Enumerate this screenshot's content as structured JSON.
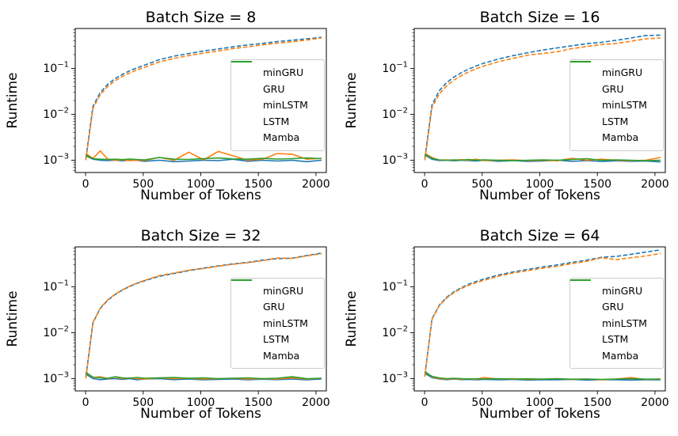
{
  "figure": {
    "background": "#ffffff"
  },
  "chart_data": [
    {
      "type": "line",
      "title": "Batch Size = 8",
      "xlabel": "Number of Tokens",
      "ylabel": "Runtime",
      "x_ticks": [
        0,
        500,
        1000,
        1500,
        2000
      ],
      "y_tick_exponents": [
        -3,
        -2,
        -1
      ],
      "xlim": [
        -90,
        2090
      ],
      "ylim": [
        0.00054,
        0.74
      ],
      "yscale": "log",
      "grid": false,
      "legend_position": "center right",
      "x": [
        2,
        64,
        128,
        192,
        256,
        320,
        384,
        448,
        512,
        640,
        768,
        896,
        1024,
        1152,
        1280,
        1408,
        1536,
        1664,
        1792,
        1920,
        2048
      ],
      "series": [
        {
          "name": "minGRU",
          "color": "#1f77b4",
          "dash": "solid",
          "values": [
            0.00125,
            0.00105,
            0.001,
            0.00098,
            0.001,
            0.00097,
            0.001,
            0.00099,
            0.00095,
            0.001,
            0.00093,
            0.00096,
            0.001,
            0.00098,
            0.00105,
            0.00095,
            0.001,
            0.00096,
            0.001,
            0.00093,
            0.001
          ]
        },
        {
          "name": "GRU",
          "color": "#1f77b4",
          "dash": "dashed",
          "values": [
            0.0011,
            0.015,
            0.03,
            0.045,
            0.06,
            0.074,
            0.089,
            0.103,
            0.118,
            0.155,
            0.185,
            0.21,
            0.24,
            0.265,
            0.295,
            0.325,
            0.35,
            0.385,
            0.41,
            0.44,
            0.475
          ]
        },
        {
          "name": "minLSTM",
          "color": "#ff7f0e",
          "dash": "solid",
          "values": [
            0.0014,
            0.0011,
            0.0016,
            0.00105,
            0.001,
            0.00102,
            0.00098,
            0.001,
            0.00099,
            0.00115,
            0.001,
            0.0015,
            0.00102,
            0.00155,
            0.00125,
            0.001,
            0.00105,
            0.0014,
            0.00135,
            0.00105,
            0.0011
          ]
        },
        {
          "name": "LSTM",
          "color": "#ff7f0e",
          "dash": "dashed",
          "values": [
            0.001,
            0.0135,
            0.027,
            0.0405,
            0.054,
            0.067,
            0.08,
            0.093,
            0.106,
            0.138,
            0.165,
            0.19,
            0.215,
            0.24,
            0.27,
            0.295,
            0.325,
            0.355,
            0.38,
            0.415,
            0.46
          ]
        },
        {
          "name": "Mamba",
          "color": "#2ca02c",
          "dash": "solid",
          "values": [
            0.0013,
            0.00108,
            0.00105,
            0.00104,
            0.00105,
            0.00103,
            0.00106,
            0.00104,
            0.00102,
            0.00115,
            0.00105,
            0.00104,
            0.00108,
            0.00112,
            0.00107,
            0.00105,
            0.0011,
            0.00106,
            0.00108,
            0.00112,
            0.00108
          ]
        }
      ]
    },
    {
      "type": "line",
      "title": "Batch Size = 16",
      "xlabel": "Number of Tokens",
      "ylabel": "Runtime",
      "x_ticks": [
        0,
        500,
        1000,
        1500,
        2000
      ],
      "y_tick_exponents": [
        -3,
        -2,
        -1
      ],
      "xlim": [
        -90,
        2090
      ],
      "ylim": [
        0.00054,
        0.74
      ],
      "yscale": "log",
      "grid": false,
      "legend_position": "center right",
      "x": [
        2,
        64,
        128,
        192,
        256,
        320,
        384,
        448,
        512,
        640,
        768,
        896,
        1024,
        1152,
        1280,
        1408,
        1536,
        1664,
        1792,
        1920,
        2048
      ],
      "series": [
        {
          "name": "minGRU",
          "color": "#1f77b4",
          "dash": "solid",
          "values": [
            0.0013,
            0.00105,
            0.00098,
            0.001,
            0.00097,
            0.001,
            0.00098,
            0.00096,
            0.001,
            0.00095,
            0.00098,
            0.00094,
            0.00096,
            0.001,
            0.00095,
            0.00098,
            0.00094,
            0.00097,
            0.00095,
            0.00096,
            0.00092
          ]
        },
        {
          "name": "GRU",
          "color": "#1f77b4",
          "dash": "dashed",
          "values": [
            0.0011,
            0.016,
            0.033,
            0.049,
            0.065,
            0.081,
            0.097,
            0.113,
            0.129,
            0.16,
            0.19,
            0.22,
            0.25,
            0.28,
            0.31,
            0.345,
            0.37,
            0.41,
            0.46,
            0.52,
            0.53
          ]
        },
        {
          "name": "minLSTM",
          "color": "#ff7f0e",
          "dash": "solid",
          "values": [
            0.0014,
            0.00115,
            0.001,
            0.00102,
            0.001,
            0.00103,
            0.001,
            0.00105,
            0.00098,
            0.001,
            0.00102,
            0.00098,
            0.001,
            0.00097,
            0.0011,
            0.001,
            0.00105,
            0.001,
            0.00098,
            0.001,
            0.00115
          ]
        },
        {
          "name": "LSTM",
          "color": "#ff7f0e",
          "dash": "dashed",
          "values": [
            0.001,
            0.014,
            0.028,
            0.042,
            0.056,
            0.07,
            0.084,
            0.098,
            0.112,
            0.14,
            0.165,
            0.195,
            0.21,
            0.23,
            0.27,
            0.3,
            0.33,
            0.35,
            0.39,
            0.44,
            0.46
          ]
        },
        {
          "name": "Mamba",
          "color": "#2ca02c",
          "dash": "solid",
          "values": [
            0.00135,
            0.0011,
            0.00102,
            0.001,
            0.00102,
            0.001,
            0.00104,
            0.001,
            0.00102,
            0.001,
            0.00098,
            0.001,
            0.00102,
            0.001,
            0.00104,
            0.00108,
            0.001,
            0.00102,
            0.001,
            0.00098,
            0.001
          ]
        }
      ]
    },
    {
      "type": "line",
      "title": "Batch Size = 32",
      "xlabel": "Number of Tokens",
      "ylabel": "Runtime",
      "x_ticks": [
        0,
        500,
        1000,
        1500,
        2000
      ],
      "y_tick_exponents": [
        -3,
        -2,
        -1
      ],
      "xlim": [
        -90,
        2090
      ],
      "ylim": [
        0.00054,
        0.74
      ],
      "yscale": "log",
      "grid": false,
      "legend_position": "center right",
      "x": [
        2,
        64,
        128,
        192,
        256,
        320,
        384,
        448,
        512,
        640,
        768,
        896,
        1024,
        1152,
        1280,
        1408,
        1536,
        1664,
        1792,
        1920,
        2048
      ],
      "series": [
        {
          "name": "minGRU",
          "color": "#1f77b4",
          "dash": "solid",
          "values": [
            0.00125,
            0.001,
            0.00095,
            0.00098,
            0.001,
            0.00096,
            0.001,
            0.00094,
            0.00098,
            0.001,
            0.00095,
            0.00098,
            0.00094,
            0.00096,
            0.00098,
            0.00094,
            0.00097,
            0.00095,
            0.00098,
            0.00094,
            0.00098
          ]
        },
        {
          "name": "GRU",
          "color": "#1f77b4",
          "dash": "dashed",
          "values": [
            0.0011,
            0.0165,
            0.034,
            0.051,
            0.068,
            0.085,
            0.102,
            0.119,
            0.135,
            0.17,
            0.195,
            0.225,
            0.255,
            0.285,
            0.315,
            0.34,
            0.38,
            0.41,
            0.42,
            0.48,
            0.54
          ]
        },
        {
          "name": "minLSTM",
          "color": "#ff7f0e",
          "dash": "solid",
          "values": [
            0.0014,
            0.00105,
            0.0011,
            0.001,
            0.00108,
            0.001,
            0.00104,
            0.001,
            0.00098,
            0.00104,
            0.001,
            0.00102,
            0.00098,
            0.001,
            0.00102,
            0.00098,
            0.001,
            0.00098,
            0.00104,
            0.00098,
            0.00102
          ]
        },
        {
          "name": "LSTM",
          "color": "#ff7f0e",
          "dash": "dashed",
          "values": [
            0.001,
            0.017,
            0.0345,
            0.052,
            0.069,
            0.086,
            0.104,
            0.121,
            0.138,
            0.175,
            0.2,
            0.23,
            0.25,
            0.28,
            0.31,
            0.335,
            0.37,
            0.425,
            0.415,
            0.47,
            0.53
          ]
        },
        {
          "name": "Mamba",
          "color": "#2ca02c",
          "dash": "solid",
          "values": [
            0.00135,
            0.00108,
            0.00104,
            0.00102,
            0.0011,
            0.00104,
            0.00102,
            0.00106,
            0.00102,
            0.00104,
            0.00106,
            0.00102,
            0.00104,
            0.001,
            0.00102,
            0.00104,
            0.001,
            0.00102,
            0.0011,
            0.001,
            0.00102
          ]
        }
      ]
    },
    {
      "type": "line",
      "title": "Batch Size = 64",
      "xlabel": "Number of Tokens",
      "ylabel": "Runtime",
      "x_ticks": [
        0,
        500,
        1000,
        1500,
        2000
      ],
      "y_tick_exponents": [
        -3,
        -2,
        -1
      ],
      "xlim": [
        -90,
        2090
      ],
      "ylim": [
        0.00054,
        0.74
      ],
      "yscale": "log",
      "grid": false,
      "legend_position": "center right",
      "x": [
        2,
        64,
        128,
        192,
        256,
        320,
        384,
        448,
        512,
        640,
        768,
        896,
        1024,
        1152,
        1280,
        1408,
        1536,
        1664,
        1792,
        1920,
        2048
      ],
      "series": [
        {
          "name": "minGRU",
          "color": "#1f77b4",
          "dash": "solid",
          "values": [
            0.0013,
            0.00105,
            0.00098,
            0.00095,
            0.00098,
            0.00095,
            0.00096,
            0.00094,
            0.00096,
            0.00094,
            0.00096,
            0.00093,
            0.00095,
            0.00094,
            0.00096,
            0.00093,
            0.00095,
            0.00094,
            0.00093,
            0.00095,
            0.00094
          ]
        },
        {
          "name": "GRU",
          "color": "#1f77b4",
          "dash": "dashed",
          "values": [
            0.0012,
            0.02,
            0.04,
            0.059,
            0.078,
            0.096,
            0.114,
            0.13,
            0.147,
            0.18,
            0.21,
            0.24,
            0.27,
            0.3,
            0.34,
            0.38,
            0.44,
            0.46,
            0.51,
            0.57,
            0.64
          ]
        },
        {
          "name": "minLSTM",
          "color": "#ff7f0e",
          "dash": "solid",
          "values": [
            0.00145,
            0.0011,
            0.001,
            0.00098,
            0.001,
            0.00097,
            0.001,
            0.00096,
            0.00105,
            0.00098,
            0.001,
            0.00096,
            0.00098,
            0.001,
            0.00096,
            0.00098,
            0.00095,
            0.00098,
            0.00105,
            0.00096,
            0.00098
          ]
        },
        {
          "name": "LSTM",
          "color": "#ff7f0e",
          "dash": "dashed",
          "values": [
            0.0011,
            0.0195,
            0.039,
            0.057,
            0.075,
            0.092,
            0.108,
            0.123,
            0.138,
            0.17,
            0.2,
            0.225,
            0.255,
            0.28,
            0.32,
            0.36,
            0.43,
            0.39,
            0.43,
            0.47,
            0.53
          ]
        },
        {
          "name": "Mamba",
          "color": "#2ca02c",
          "dash": "solid",
          "values": [
            0.0014,
            0.00112,
            0.00104,
            0.001,
            0.00102,
            0.001,
            0.00098,
            0.001,
            0.00098,
            0.001,
            0.00097,
            0.00099,
            0.00097,
            0.00099,
            0.00097,
            0.00098,
            0.00096,
            0.00098,
            0.001,
            0.00097,
            0.00098
          ]
        }
      ]
    }
  ]
}
